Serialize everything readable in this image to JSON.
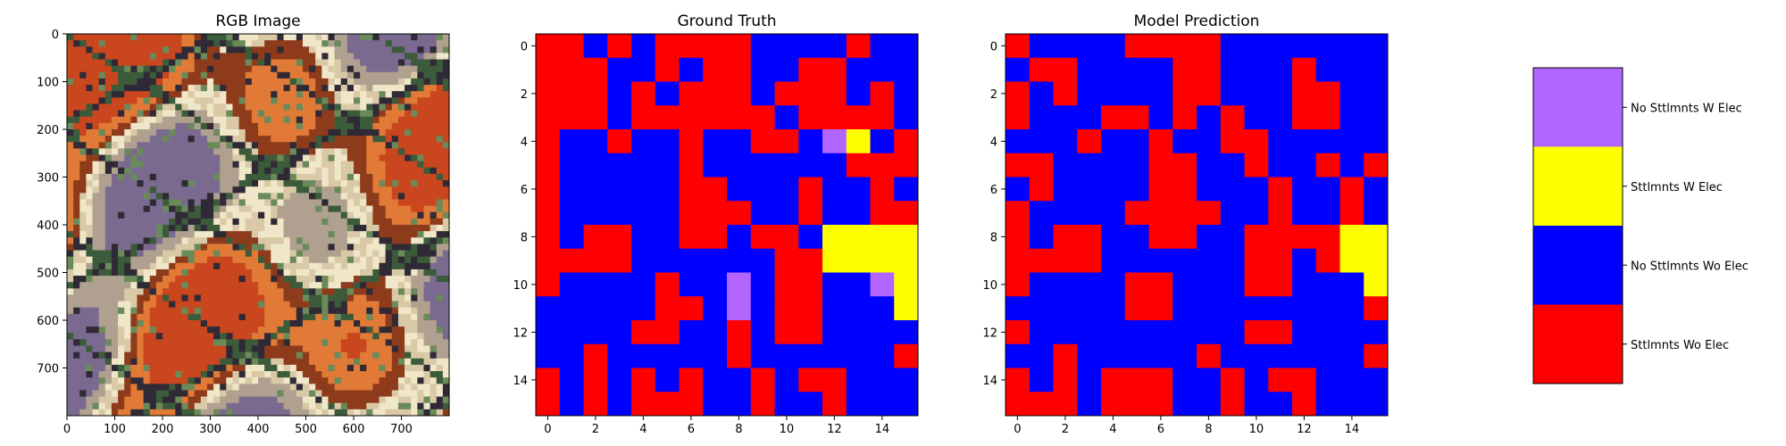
{
  "figure": {
    "panels": [
      {
        "title": "RGB Image"
      },
      {
        "title": "Ground Truth"
      },
      {
        "title": "Model Prediction"
      }
    ]
  },
  "chart_data": [
    {
      "type": "image",
      "title": "RGB Image",
      "xlim": [
        0,
        800
      ],
      "ylim": [
        800,
        0
      ],
      "xticks": [
        0,
        100,
        200,
        300,
        400,
        500,
        600,
        700
      ],
      "yticks": [
        0,
        100,
        200,
        300,
        400,
        500,
        600,
        700
      ],
      "palette": [
        "#c9461e",
        "#e07a36",
        "#8e3b1c",
        "#f0e6c8",
        "#d9c9a6",
        "#3b5b3a",
        "#2f2a35",
        "#7a6a8f",
        "#b0a090",
        "#6b8a5a"
      ]
    },
    {
      "type": "heatmap",
      "title": "Ground Truth",
      "xticks": [
        0,
        2,
        4,
        6,
        8,
        10,
        12,
        14
      ],
      "yticks": [
        0,
        2,
        4,
        6,
        8,
        10,
        12,
        14
      ],
      "grid": [
        [
          3,
          3,
          2,
          3,
          2,
          3,
          3,
          3,
          3,
          2,
          2,
          2,
          2,
          3,
          2,
          2
        ],
        [
          3,
          3,
          3,
          2,
          2,
          3,
          2,
          3,
          3,
          2,
          2,
          3,
          3,
          2,
          2,
          2
        ],
        [
          3,
          3,
          3,
          2,
          3,
          2,
          3,
          3,
          3,
          2,
          3,
          3,
          3,
          2,
          3,
          2
        ],
        [
          3,
          3,
          3,
          2,
          3,
          3,
          3,
          3,
          3,
          3,
          2,
          3,
          3,
          3,
          3,
          2
        ],
        [
          3,
          2,
          2,
          3,
          2,
          2,
          3,
          2,
          2,
          3,
          3,
          2,
          0,
          1,
          2,
          3
        ],
        [
          3,
          2,
          2,
          2,
          2,
          2,
          3,
          2,
          2,
          2,
          2,
          2,
          2,
          3,
          3,
          3
        ],
        [
          3,
          2,
          2,
          2,
          2,
          2,
          3,
          3,
          2,
          2,
          2,
          3,
          2,
          2,
          3,
          2
        ],
        [
          3,
          2,
          2,
          2,
          2,
          2,
          3,
          3,
          3,
          2,
          2,
          3,
          2,
          2,
          3,
          3
        ],
        [
          3,
          2,
          3,
          3,
          2,
          2,
          3,
          3,
          2,
          3,
          3,
          2,
          1,
          1,
          1,
          1
        ],
        [
          3,
          3,
          3,
          3,
          2,
          2,
          2,
          2,
          2,
          2,
          3,
          3,
          1,
          1,
          1,
          1
        ],
        [
          3,
          2,
          2,
          2,
          2,
          3,
          2,
          2,
          0,
          2,
          3,
          3,
          2,
          2,
          0,
          1
        ],
        [
          2,
          2,
          2,
          2,
          2,
          3,
          3,
          2,
          0,
          2,
          3,
          3,
          2,
          2,
          2,
          1
        ],
        [
          2,
          2,
          2,
          2,
          3,
          3,
          2,
          2,
          3,
          2,
          3,
          3,
          2,
          2,
          2,
          2
        ],
        [
          2,
          2,
          3,
          2,
          2,
          2,
          2,
          2,
          3,
          2,
          2,
          2,
          2,
          2,
          2,
          3
        ],
        [
          3,
          2,
          3,
          2,
          3,
          2,
          3,
          2,
          2,
          3,
          2,
          3,
          3,
          2,
          2,
          2
        ],
        [
          3,
          2,
          3,
          2,
          3,
          3,
          3,
          2,
          2,
          3,
          2,
          2,
          3,
          2,
          2,
          2
        ]
      ]
    },
    {
      "type": "heatmap",
      "title": "Model Prediction",
      "xticks": [
        0,
        2,
        4,
        6,
        8,
        10,
        12,
        14
      ],
      "yticks": [
        0,
        2,
        4,
        6,
        8,
        10,
        12,
        14
      ],
      "grid": [
        [
          3,
          2,
          2,
          2,
          2,
          3,
          3,
          3,
          3,
          2,
          2,
          2,
          2,
          2,
          2,
          2
        ],
        [
          2,
          3,
          3,
          2,
          2,
          2,
          2,
          3,
          3,
          2,
          2,
          2,
          3,
          2,
          2,
          2
        ],
        [
          3,
          2,
          3,
          2,
          2,
          2,
          2,
          3,
          3,
          2,
          2,
          2,
          3,
          3,
          2,
          2
        ],
        [
          3,
          2,
          2,
          2,
          3,
          3,
          2,
          3,
          2,
          3,
          2,
          2,
          3,
          3,
          2,
          2
        ],
        [
          2,
          2,
          2,
          3,
          2,
          2,
          3,
          2,
          2,
          3,
          3,
          2,
          2,
          2,
          2,
          2
        ],
        [
          3,
          3,
          2,
          2,
          2,
          2,
          3,
          3,
          2,
          2,
          3,
          2,
          2,
          3,
          2,
          3
        ],
        [
          2,
          3,
          2,
          2,
          2,
          2,
          3,
          3,
          2,
          2,
          2,
          3,
          2,
          2,
          3,
          2
        ],
        [
          3,
          2,
          2,
          2,
          2,
          3,
          3,
          3,
          3,
          2,
          2,
          3,
          2,
          2,
          3,
          2
        ],
        [
          3,
          2,
          3,
          3,
          2,
          2,
          3,
          3,
          2,
          2,
          3,
          3,
          3,
          3,
          1,
          1
        ],
        [
          3,
          3,
          3,
          3,
          2,
          2,
          2,
          2,
          2,
          2,
          3,
          3,
          2,
          3,
          1,
          1
        ],
        [
          3,
          2,
          2,
          2,
          2,
          3,
          3,
          2,
          2,
          2,
          3,
          3,
          2,
          2,
          2,
          1
        ],
        [
          2,
          2,
          2,
          2,
          2,
          3,
          3,
          2,
          2,
          2,
          2,
          2,
          2,
          2,
          2,
          3
        ],
        [
          3,
          2,
          2,
          2,
          2,
          2,
          2,
          2,
          2,
          2,
          3,
          3,
          2,
          2,
          2,
          2
        ],
        [
          2,
          2,
          3,
          2,
          2,
          2,
          2,
          2,
          3,
          2,
          2,
          2,
          2,
          2,
          2,
          3
        ],
        [
          3,
          2,
          3,
          2,
          3,
          3,
          3,
          2,
          2,
          3,
          2,
          3,
          3,
          2,
          2,
          2
        ],
        [
          3,
          3,
          3,
          2,
          3,
          3,
          3,
          2,
          2,
          3,
          2,
          2,
          3,
          2,
          2,
          2
        ]
      ]
    }
  ],
  "legend": {
    "items": [
      {
        "label": "No Sttlmnts W Elec",
        "color": "#b266ff"
      },
      {
        "label": "Sttlmnts W Elec",
        "color": "#ffff00"
      },
      {
        "label": "No Sttlmnts Wo Elec",
        "color": "#0000ff"
      },
      {
        "label": "Sttlmnts Wo Elec",
        "color": "#ff0000"
      }
    ]
  }
}
